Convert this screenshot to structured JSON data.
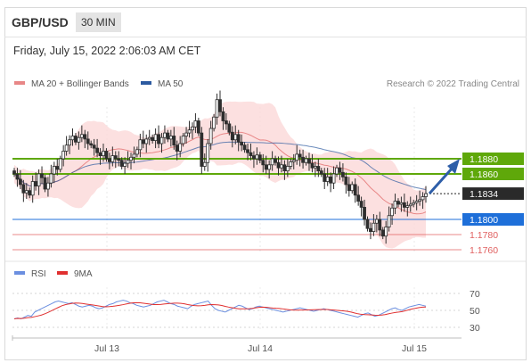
{
  "header": {
    "pair": "GBP/USD",
    "timeframe": "30 MIN"
  },
  "date_text": "Friday, July 15, 2022 2:06:03 AM CET",
  "legend": {
    "ma20": "MA 20 + Bollinger Bands",
    "ma50": "MA 50",
    "credit": "Research © 2022 Trading Central"
  },
  "rsi_legend": {
    "rsi": "RSI",
    "ma9": "9MA"
  },
  "colors": {
    "band": "#fbdada",
    "ma20": "#e88787",
    "ma50": "#2c5aa0",
    "candle": "#2e2e2e",
    "resistance": "#5fa80a",
    "pivot": "#1e6fd9",
    "support": "#e06060",
    "rsi": "#6b8fe0",
    "rsi_ma": "#e03030",
    "arrow": "#2e5ea8"
  },
  "chart_data": [
    {
      "type": "candlestick",
      "title": "GBP/USD",
      "x_ticks": [
        "Jul 13",
        "Jul 14",
        "Jul 15"
      ],
      "ylim": [
        1.175,
        1.2
      ],
      "levels": [
        {
          "label": "1.1880",
          "value": 1.188,
          "kind": "resistance"
        },
        {
          "label": "1.1860",
          "value": 1.186,
          "kind": "resistance"
        },
        {
          "label": "1.1834",
          "value": 1.1834,
          "kind": "current"
        },
        {
          "label": "1.1800",
          "value": 1.18,
          "kind": "pivot"
        },
        {
          "label": "1.1780",
          "value": 1.178,
          "kind": "support"
        },
        {
          "label": "1.1760",
          "value": 1.176,
          "kind": "support"
        }
      ],
      "close": [
        1.186,
        1.1853,
        1.1846,
        1.1835,
        1.1838,
        1.1832,
        1.185,
        1.1844,
        1.186,
        1.1855,
        1.184,
        1.1848,
        1.186,
        1.187,
        1.1866,
        1.188,
        1.189,
        1.1898,
        1.1905,
        1.191,
        1.1902,
        1.1908,
        1.1912,
        1.1906,
        1.19,
        1.1898,
        1.1894,
        1.1888,
        1.1884,
        1.189,
        1.188,
        1.1876,
        1.1884,
        1.188,
        1.1878,
        1.187,
        1.1874,
        1.1878,
        1.1882,
        1.1886,
        1.1892,
        1.1905,
        1.19,
        1.1906,
        1.1908,
        1.1904,
        1.1912,
        1.19,
        1.1908,
        1.1914,
        1.1906,
        1.191,
        1.1898,
        1.189,
        1.19,
        1.191,
        1.1914,
        1.1918,
        1.1922,
        1.193,
        1.1914,
        1.187,
        1.1875,
        1.19,
        1.192,
        1.1935,
        1.1958,
        1.1942,
        1.193,
        1.1926,
        1.1915,
        1.1905,
        1.1912,
        1.1902,
        1.1898,
        1.1892,
        1.1888,
        1.1884,
        1.188,
        1.1885,
        1.1878,
        1.1872,
        1.1866,
        1.1872,
        1.188,
        1.1875,
        1.1868,
        1.1872,
        1.1864,
        1.187,
        1.1876,
        1.1878,
        1.1886,
        1.1882,
        1.1875,
        1.188,
        1.1874,
        1.1868,
        1.187,
        1.1864,
        1.186,
        1.185,
        1.1856,
        1.1848,
        1.186,
        1.1868,
        1.1862,
        1.1856,
        1.1846,
        1.1838,
        1.1846,
        1.1832,
        1.1824,
        1.1816,
        1.18,
        1.1788,
        1.1784,
        1.1795,
        1.18,
        1.1786,
        1.1778,
        1.179,
        1.1805,
        1.1815,
        1.1824,
        1.182,
        1.1822,
        1.1816,
        1.1818,
        1.182,
        1.1822,
        1.1824,
        1.1826,
        1.183,
        1.1834
      ]
    },
    {
      "type": "line",
      "title": "RSI",
      "series": [
        {
          "name": "RSI"
        },
        {
          "name": "9MA"
        }
      ],
      "y_ticks": [
        70,
        50,
        30
      ],
      "ylim": [
        20,
        80
      ],
      "rsi": [
        40,
        41,
        40,
        42,
        44,
        43,
        48,
        50,
        52,
        54,
        56,
        58,
        60,
        61,
        60,
        59,
        58,
        59,
        57,
        55,
        54,
        55,
        56,
        55,
        53,
        52,
        53,
        55,
        57,
        58,
        60,
        61,
        62,
        61,
        59,
        58,
        56,
        55,
        54,
        55,
        56,
        58,
        60,
        61,
        62,
        60,
        58,
        57,
        55,
        54,
        53,
        52,
        55,
        57,
        58,
        59,
        60,
        61,
        56,
        52,
        50,
        49,
        48,
        50,
        52,
        54,
        56,
        55,
        53,
        51,
        52,
        54,
        55,
        54,
        53,
        52,
        51,
        50,
        49,
        48,
        49,
        50,
        51,
        52,
        53,
        52,
        51,
        50,
        49,
        50,
        51,
        52,
        51,
        50,
        49,
        48,
        47,
        46,
        45,
        44,
        43,
        42,
        44,
        46,
        47,
        45,
        43,
        44,
        46,
        48,
        50,
        52,
        53,
        51,
        50,
        52,
        54,
        55,
        56,
        57,
        56,
        55
      ]
    }
  ]
}
